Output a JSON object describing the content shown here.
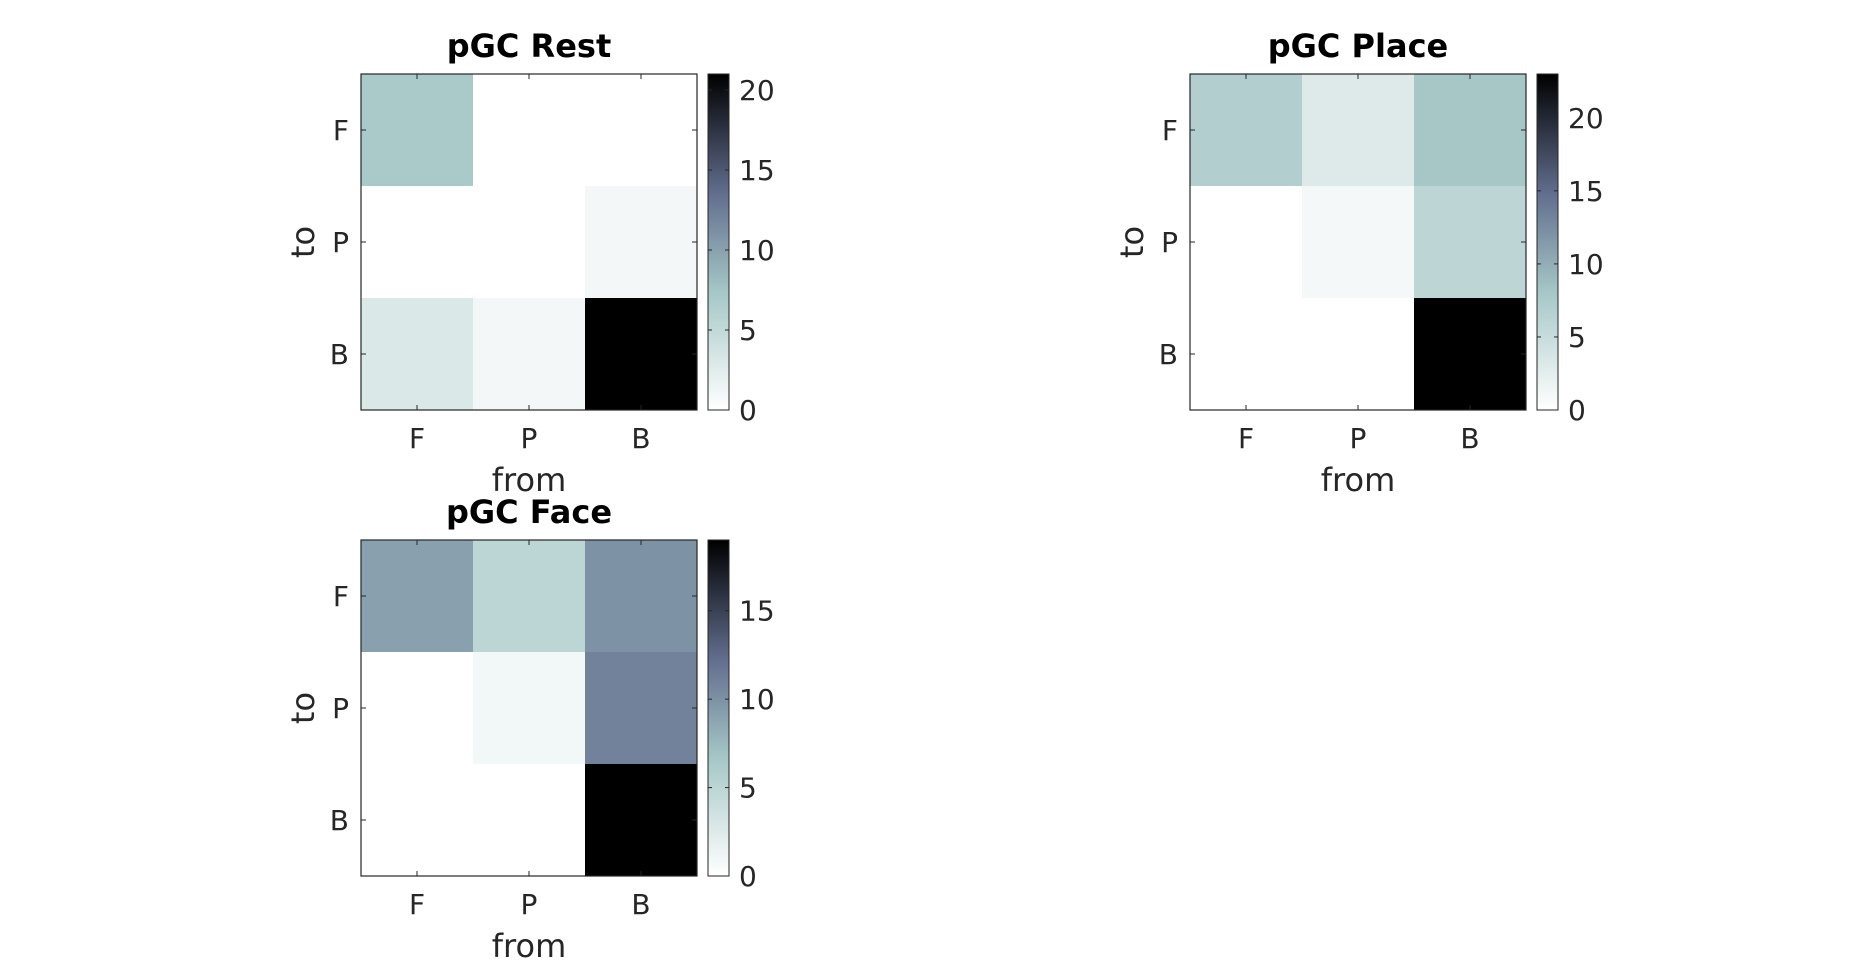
{
  "chart_data": [
    {
      "type": "heatmap",
      "title": "pGC Rest",
      "xlabel": "from",
      "ylabel": "to",
      "x_categories": [
        "F",
        "P",
        "B"
      ],
      "y_categories": [
        "F",
        "P",
        "B"
      ],
      "values": [
        [
          7,
          0,
          0
        ],
        [
          0,
          0,
          1
        ],
        [
          3,
          1,
          21
        ]
      ],
      "clim": [
        0,
        21
      ],
      "colorbar_ticks": [
        0,
        5,
        10,
        15,
        20
      ],
      "colormap": "bone (reversed)"
    },
    {
      "type": "heatmap",
      "title": "pGC Place",
      "xlabel": "from",
      "ylabel": "to",
      "x_categories": [
        "F",
        "P",
        "B"
      ],
      "y_categories": [
        "F",
        "P",
        "B"
      ],
      "values": [
        [
          7,
          3,
          8
        ],
        [
          0,
          1,
          6
        ],
        [
          0,
          0,
          23
        ]
      ],
      "clim": [
        0,
        23
      ],
      "colorbar_ticks": [
        0,
        5,
        10,
        15,
        20
      ],
      "colormap": "bone (reversed)"
    },
    {
      "type": "heatmap",
      "title": "pGC Face",
      "xlabel": "from",
      "ylabel": "to",
      "x_categories": [
        "F",
        "P",
        "B"
      ],
      "y_categories": [
        "F",
        "P",
        "B"
      ],
      "values": [
        [
          9,
          5,
          10
        ],
        [
          0,
          1,
          11
        ],
        [
          0,
          0,
          19
        ]
      ],
      "clim": [
        0,
        19
      ],
      "colorbar_ticks": [
        0,
        5,
        10,
        15
      ],
      "colormap": "bone (reversed)"
    }
  ]
}
